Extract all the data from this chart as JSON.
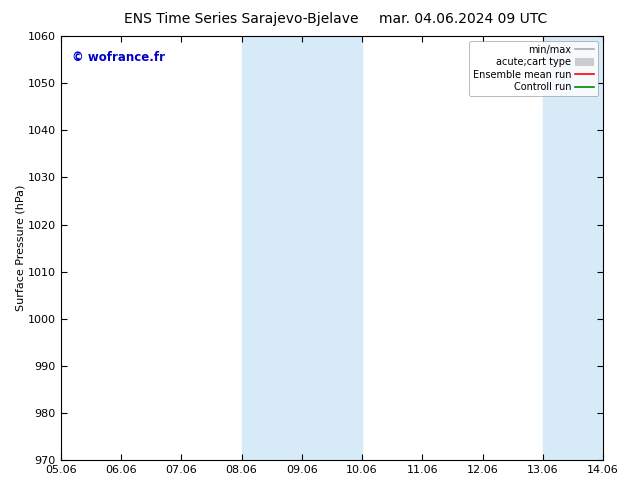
{
  "title_left": "ENS Time Series Sarajevo-Bjelave",
  "title_right": "mar. 04.06.2024 09 UTC",
  "ylabel": "Surface Pressure (hPa)",
  "ylim": [
    970,
    1060
  ],
  "yticks": [
    970,
    980,
    990,
    1000,
    1010,
    1020,
    1030,
    1040,
    1050,
    1060
  ],
  "xtick_labels": [
    "05.06",
    "06.06",
    "07.06",
    "08.06",
    "09.06",
    "10.06",
    "11.06",
    "12.06",
    "13.06",
    "14.06"
  ],
  "shaded_regions": [
    {
      "start": 3,
      "end": 5,
      "color": "#d6eaf8"
    },
    {
      "start": 8,
      "end": 10,
      "color": "#d6eaf8"
    }
  ],
  "watermark": "© wofrance.fr",
  "watermark_color": "#0000cc",
  "legend_entries": [
    {
      "label": "min/max",
      "color": "#aaaaaa",
      "lw": 1.2
    },
    {
      "label": "acute;cart type",
      "color": "#cccccc",
      "lw": 6
    },
    {
      "label": "Ensemble mean run",
      "color": "#ff0000",
      "lw": 1.2
    },
    {
      "label": "Controll run",
      "color": "#008800",
      "lw": 1.2
    }
  ],
  "bg_color": "#ffffff",
  "title_fontsize": 10,
  "tick_fontsize": 8,
  "axis_color": "#000000"
}
